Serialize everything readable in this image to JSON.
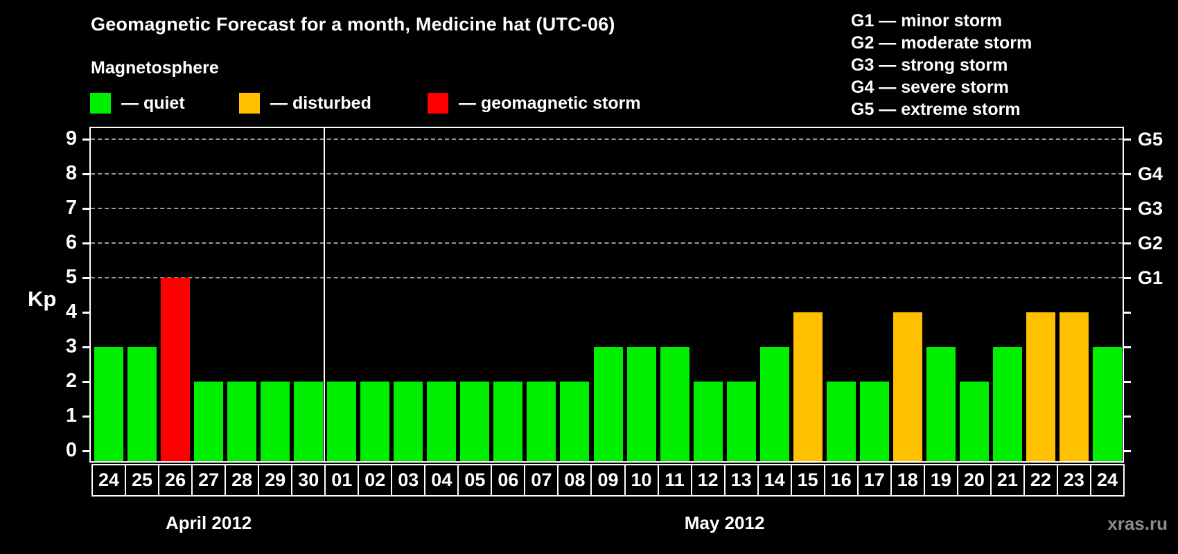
{
  "title": "Geomagnetic Forecast for a month, Medicine hat (UTC-06)",
  "subtitle": "Magnetosphere",
  "legend": {
    "items": [
      {
        "key": "quiet",
        "label": "— quiet"
      },
      {
        "key": "disturbed",
        "label": "— disturbed"
      },
      {
        "key": "storm",
        "label": "— geomagnetic storm"
      }
    ]
  },
  "g_legend": {
    "lines": [
      "G1 — minor storm",
      "G2 — moderate storm",
      "G3 — strong storm",
      "G4 — severe storm",
      "G5 — extreme storm"
    ]
  },
  "watermark": "xras.ru",
  "colors": {
    "background": "#000000",
    "text": "#ffffff",
    "quiet": "#00ee00",
    "disturbed": "#ffc000",
    "storm": "#ff0000",
    "grid": "#9a9a9a",
    "watermark": "#8c8c8c"
  },
  "chart_data": {
    "type": "bar",
    "title": "Geomagnetic Forecast for a month, Medicine hat (UTC-06)",
    "subtitle": "Magnetosphere",
    "ylabel": "Kp",
    "ylim": [
      0,
      9
    ],
    "y_ticks": [
      0,
      1,
      2,
      3,
      4,
      5,
      6,
      7,
      8,
      9
    ],
    "gridlines_at": [
      5,
      6,
      7,
      8,
      9
    ],
    "grid": "dashed, horizontal only, at Kp 5-9",
    "legend_position": "top",
    "right_axis_labels": [
      {
        "kp": 5,
        "label": "G1"
      },
      {
        "kp": 6,
        "label": "G2"
      },
      {
        "kp": 7,
        "label": "G3"
      },
      {
        "kp": 8,
        "label": "G4"
      },
      {
        "kp": 9,
        "label": "G5"
      }
    ],
    "categories": [
      "24",
      "25",
      "26",
      "27",
      "28",
      "29",
      "30",
      "01",
      "02",
      "03",
      "04",
      "05",
      "06",
      "07",
      "08",
      "09",
      "10",
      "11",
      "12",
      "13",
      "14",
      "15",
      "16",
      "17",
      "18",
      "19",
      "20",
      "21",
      "22",
      "23",
      "24"
    ],
    "values": [
      3,
      3,
      5,
      2,
      2,
      2,
      2,
      2,
      2,
      2,
      2,
      2,
      2,
      2,
      2,
      3,
      3,
      3,
      2,
      2,
      3,
      4,
      2,
      2,
      4,
      3,
      2,
      3,
      4,
      4,
      3
    ],
    "statuses": [
      "quiet",
      "quiet",
      "storm",
      "quiet",
      "quiet",
      "quiet",
      "quiet",
      "quiet",
      "quiet",
      "quiet",
      "quiet",
      "quiet",
      "quiet",
      "quiet",
      "quiet",
      "quiet",
      "quiet",
      "quiet",
      "quiet",
      "quiet",
      "quiet",
      "disturbed",
      "quiet",
      "quiet",
      "disturbed",
      "quiet",
      "quiet",
      "quiet",
      "disturbed",
      "disturbed",
      "quiet"
    ],
    "months": [
      {
        "label": "April 2012",
        "days": 7
      },
      {
        "label": "May 2012",
        "days": 24
      }
    ]
  }
}
